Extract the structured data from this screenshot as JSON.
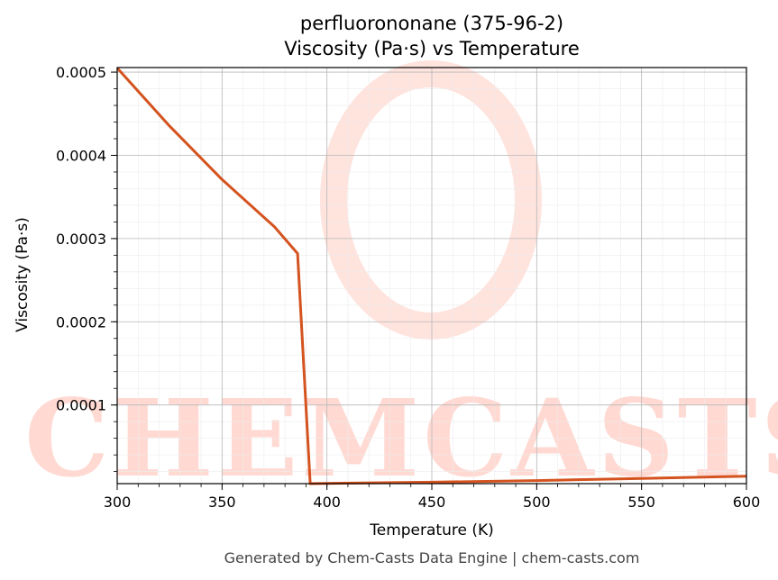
{
  "chart_data": {
    "type": "line",
    "title": "perfluorononane (375-96-2)",
    "subtitle": "Viscosity (Pa·s) vs Temperature",
    "xlabel": "Temperature (K)",
    "ylabel": "Viscosity (Pa·s)",
    "xlim": [
      300,
      600
    ],
    "ylim": [
      5.5e-06,
      0.0005055
    ],
    "x_ticks": [
      300,
      350,
      400,
      450,
      500,
      550,
      600
    ],
    "x_tick_labels": [
      "300",
      "350",
      "400",
      "450",
      "500",
      "550",
      "600"
    ],
    "y_ticks": [
      0.0001,
      0.0002,
      0.0003,
      0.0004,
      0.0005
    ],
    "y_tick_labels": [
      "0.0001",
      "0.0002",
      "0.0003",
      "0.0004",
      "0.0005"
    ],
    "grid": true,
    "series": [
      {
        "color": "#d4531f",
        "x": [
          300,
          325,
          350,
          375,
          386,
          392,
          400,
          450,
          500,
          550,
          600
        ],
        "y": [
          0.000505,
          0.000435,
          0.000371,
          0.000314,
          0.000282,
          5.5e-06,
          5.8e-06,
          7.2e-06,
          9.2e-06,
          1.18e-05,
          1.45e-05
        ]
      }
    ]
  },
  "watermark": {
    "text": "CHEMCASTS",
    "color": "#ffd9d2"
  },
  "footer": "Generated by Chem-Casts Data Engine | chem-casts.com"
}
